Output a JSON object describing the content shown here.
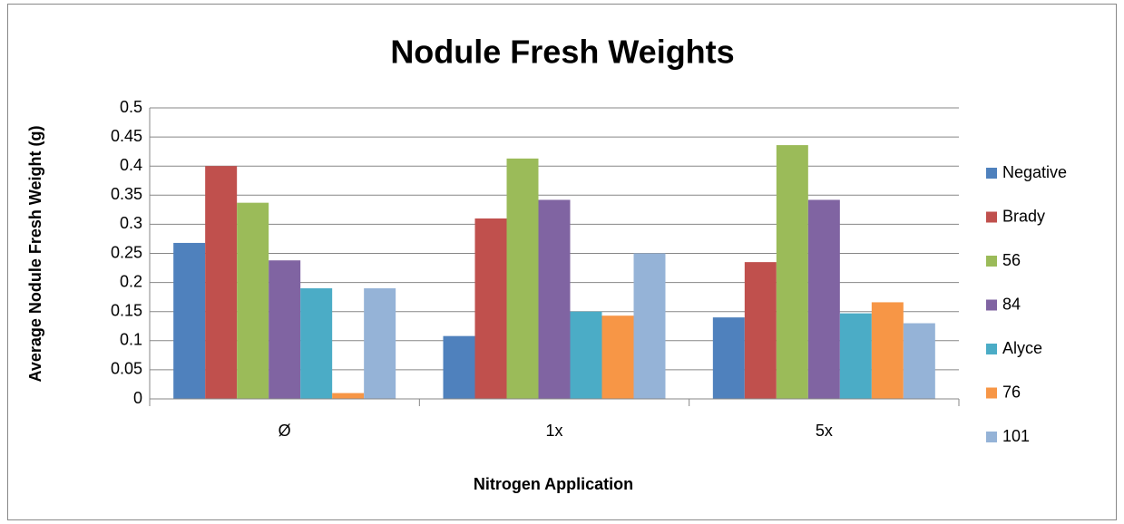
{
  "chart_data": {
    "type": "bar",
    "title": "Nodule Fresh Weights",
    "x_label": "Nitrogen Application",
    "y_label": "Average Nodule Fresh Weight (g)",
    "categories": [
      "Ø",
      "1x",
      "5x"
    ],
    "series": [
      {
        "name": "Negative",
        "color": "#4f81bd",
        "values": [
          0.268,
          0.108,
          0.14
        ]
      },
      {
        "name": "Brady",
        "color": "#c0504d",
        "values": [
          0.4,
          0.31,
          0.235
        ]
      },
      {
        "name": "56",
        "color": "#9bbb59",
        "values": [
          0.337,
          0.413,
          0.436
        ]
      },
      {
        "name": "84",
        "color": "#8064a2",
        "values": [
          0.238,
          0.342,
          0.342
        ]
      },
      {
        "name": "Alyce",
        "color": "#4bacc6",
        "values": [
          0.19,
          0.15,
          0.147
        ]
      },
      {
        "name": "76",
        "color": "#f79646",
        "values": [
          0.01,
          0.143,
          0.166
        ]
      },
      {
        "name": "101",
        "color": "#95b3d7",
        "values": [
          0.19,
          0.25,
          0.13
        ]
      }
    ],
    "ylim": [
      0,
      0.5
    ],
    "yticks": [
      0,
      0.05,
      0.1,
      0.15,
      0.2,
      0.25,
      0.3,
      0.35,
      0.4,
      0.45,
      0.5
    ],
    "grid": true,
    "legend": "right"
  }
}
